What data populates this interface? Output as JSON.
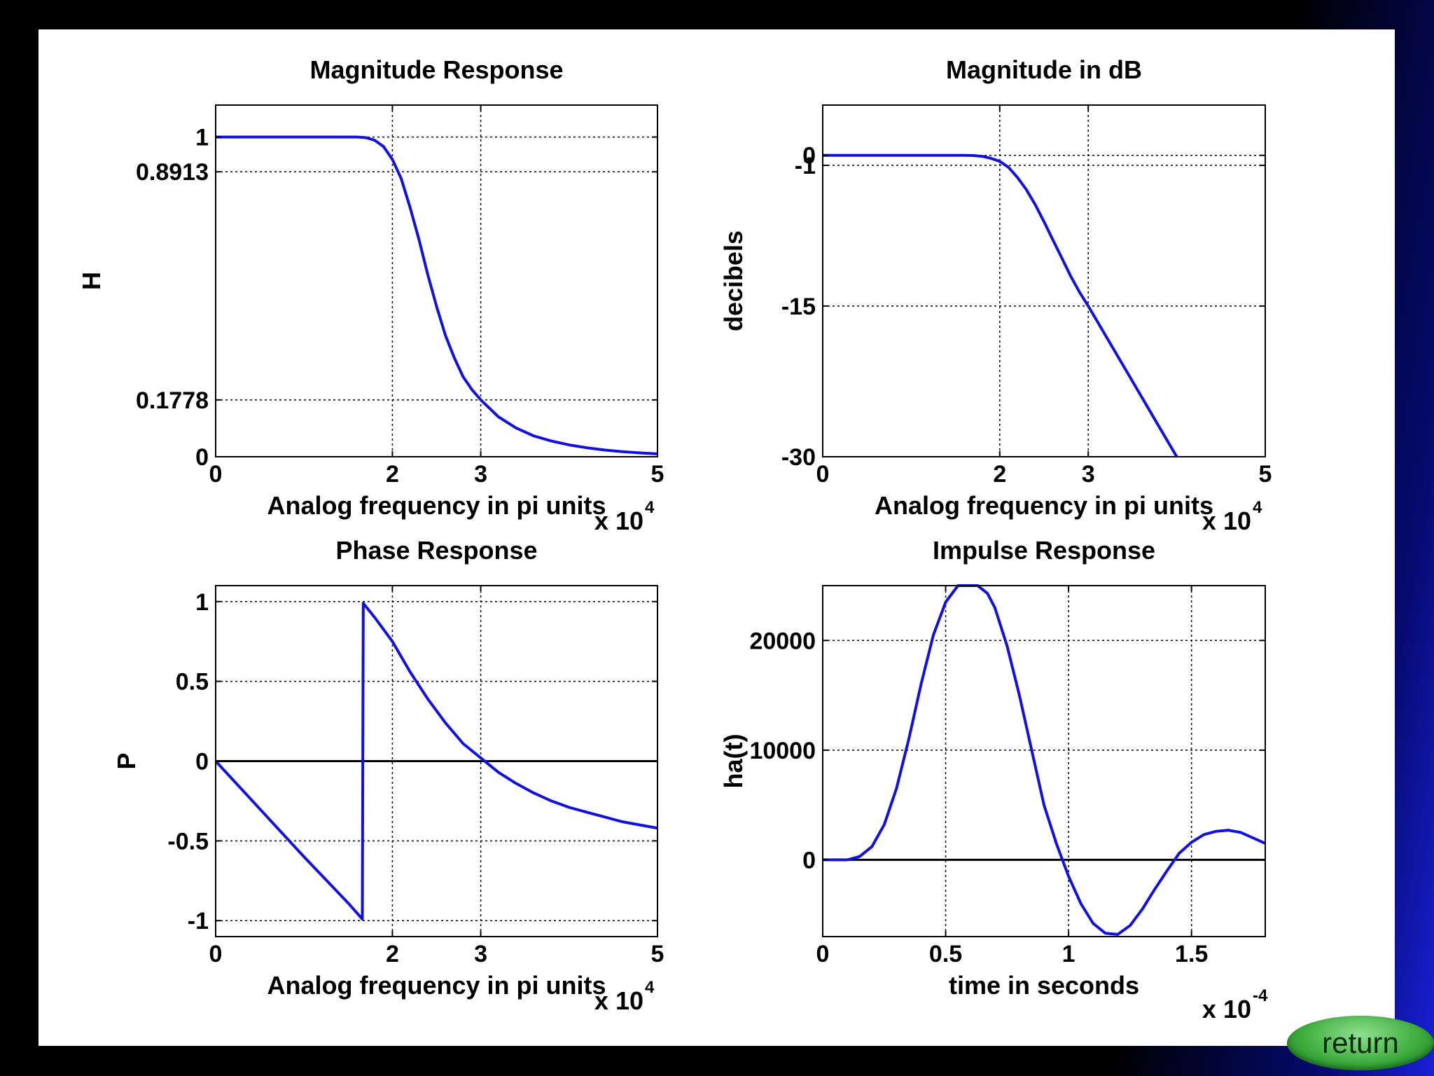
{
  "return_label": "return",
  "colors": {
    "curve": "#1010e0",
    "zero_line": "#000000",
    "grid": "#000000"
  },
  "chart_data": [
    {
      "type": "line",
      "title": "Magnitude Response",
      "xlabel": "Analog frequency in pi units",
      "ylabel": "H",
      "x_multiplier": "x 10",
      "x_multiplier_exp": "4",
      "xlim": [
        0,
        50000
      ],
      "ylim": [
        0,
        1.1
      ],
      "xticks": [
        0,
        20000,
        30000,
        50000
      ],
      "xtick_labels": [
        "0",
        "2",
        "3",
        "5"
      ],
      "yticks": [
        0,
        0.1778,
        0.8913,
        1
      ],
      "ytick_labels": [
        "0",
        "0.1778",
        "0.8913",
        "1"
      ],
      "grid": true,
      "series": [
        {
          "x": [
            0,
            5000,
            10000,
            15000,
            16000,
            17000,
            18000,
            19000,
            20000,
            21000,
            22000,
            23000,
            24000,
            25000,
            26000,
            27000,
            28000,
            29000,
            30000,
            32000,
            34000,
            36000,
            38000,
            40000,
            42000,
            44000,
            46000,
            48000,
            50000
          ],
          "y": [
            1,
            1,
            1,
            1,
            1,
            0.998,
            0.99,
            0.97,
            0.93,
            0.87,
            0.78,
            0.68,
            0.57,
            0.47,
            0.38,
            0.31,
            0.25,
            0.21,
            0.178,
            0.125,
            0.09,
            0.065,
            0.049,
            0.037,
            0.028,
            0.021,
            0.016,
            0.012,
            0.009
          ]
        }
      ]
    },
    {
      "type": "line",
      "title": "Magnitude in dB",
      "xlabel": "Analog frequency in pi units",
      "ylabel": "decibels",
      "x_multiplier": "x 10",
      "x_multiplier_exp": "4",
      "xlim": [
        0,
        50000
      ],
      "ylim": [
        -30,
        5
      ],
      "xticks": [
        0,
        20000,
        30000,
        50000
      ],
      "xtick_labels": [
        "0",
        "2",
        "3",
        "5"
      ],
      "yticks": [
        -30,
        -15,
        -1,
        0
      ],
      "ytick_labels": [
        "-30",
        "-15",
        "-1",
        "0"
      ],
      "grid": true,
      "series": [
        {
          "x": [
            0,
            5000,
            10000,
            15000,
            16000,
            17000,
            18000,
            19000,
            20000,
            21000,
            22000,
            23000,
            24000,
            25000,
            26000,
            27000,
            28000,
            29000,
            30000,
            32000,
            34000,
            36000,
            38000,
            40000
          ],
          "y": [
            0,
            0,
            0,
            0,
            0,
            -0.02,
            -0.1,
            -0.3,
            -0.6,
            -1.2,
            -2.2,
            -3.4,
            -4.9,
            -6.6,
            -8.4,
            -10.2,
            -12.0,
            -13.6,
            -15.0,
            -18.0,
            -21.0,
            -24.0,
            -27.0,
            -30.0
          ]
        }
      ]
    },
    {
      "type": "line",
      "title": "Phase Response",
      "xlabel": "Analog frequency in pi units",
      "ylabel": "P",
      "x_multiplier": "x 10",
      "x_multiplier_exp": "4",
      "xlim": [
        0,
        50000
      ],
      "ylim": [
        -1.1,
        1.1
      ],
      "xticks": [
        0,
        20000,
        30000,
        50000
      ],
      "xtick_labels": [
        "0",
        "2",
        "3",
        "5"
      ],
      "yticks": [
        -1,
        -0.5,
        0,
        0.5,
        1
      ],
      "ytick_labels": [
        "-1",
        "-0.5",
        "0",
        "0.5",
        "1"
      ],
      "grid": true,
      "zero_line": true,
      "series": [
        {
          "x": [
            0,
            5000,
            10000,
            15000,
            16600,
            16700,
            18000,
            20000,
            22000,
            24000,
            26000,
            28000,
            30000,
            32000,
            34000,
            36000,
            38000,
            40000,
            42000,
            44000,
            46000,
            48000,
            50000
          ],
          "y": [
            0,
            -0.3,
            -0.6,
            -0.89,
            -0.99,
            0.99,
            0.9,
            0.75,
            0.56,
            0.39,
            0.24,
            0.11,
            0.02,
            -0.07,
            -0.14,
            -0.2,
            -0.25,
            -0.29,
            -0.32,
            -0.35,
            -0.38,
            -0.4,
            -0.42
          ]
        }
      ]
    },
    {
      "type": "line",
      "title": "Impulse Response",
      "xlabel": "time in seconds",
      "ylabel": "ha(t)",
      "x_multiplier": "x 10",
      "x_multiplier_exp": "-4",
      "xlim": [
        0,
        0.00018
      ],
      "ylim": [
        -7000,
        25000
      ],
      "xticks": [
        0,
        5e-05,
        0.0001,
        0.00015
      ],
      "xtick_labels": [
        "0",
        "0.5",
        "1",
        "1.5"
      ],
      "yticks": [
        0,
        10000,
        20000
      ],
      "ytick_labels": [
        "0",
        "10000",
        "20000"
      ],
      "grid": true,
      "zero_line": true,
      "series": [
        {
          "x": [
            0,
            1e-05,
            1.5e-05,
            2e-05,
            2.5e-05,
            3e-05,
            3.5e-05,
            4e-05,
            4.5e-05,
            5e-05,
            5.5e-05,
            6e-05,
            6.3e-05,
            6.7e-05,
            7e-05,
            7.5e-05,
            8e-05,
            8.5e-05,
            9e-05,
            9.5e-05,
            0.0001,
            0.000105,
            0.00011,
            0.000115,
            0.00012,
            0.000125,
            0.00013,
            0.000135,
            0.00014,
            0.000145,
            0.00015,
            0.000155,
            0.00016,
            0.000165,
            0.00017,
            0.000175,
            0.00018
          ],
          "y": [
            0,
            0,
            300,
            1200,
            3200,
            6500,
            11000,
            16000,
            20500,
            23500,
            25000,
            25000,
            25000,
            24300,
            23000,
            19500,
            15000,
            10000,
            5000,
            1500,
            -1500,
            -4000,
            -5800,
            -6700,
            -6800,
            -6000,
            -4500,
            -2700,
            -1000,
            600,
            1600,
            2300,
            2600,
            2700,
            2500,
            2000,
            1500
          ]
        }
      ]
    }
  ]
}
